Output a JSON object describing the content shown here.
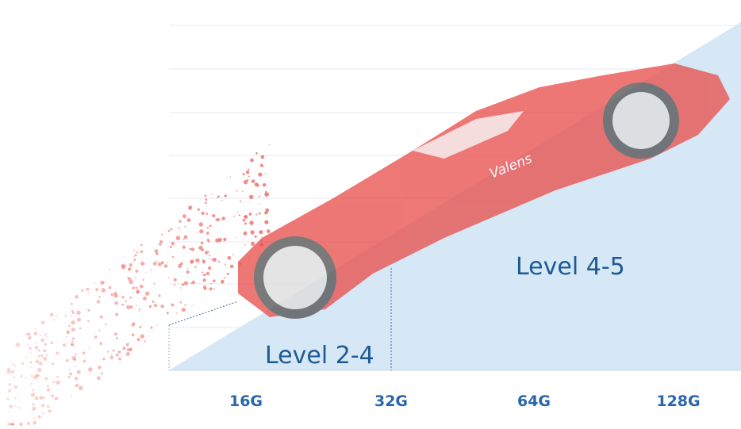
{
  "x_labels": [
    "16G",
    "32G",
    "64G",
    "128G"
  ],
  "regions": [
    {
      "label": "Level 2-4"
    },
    {
      "label": "Level 4-5"
    }
  ],
  "car_logo": "Valens"
}
